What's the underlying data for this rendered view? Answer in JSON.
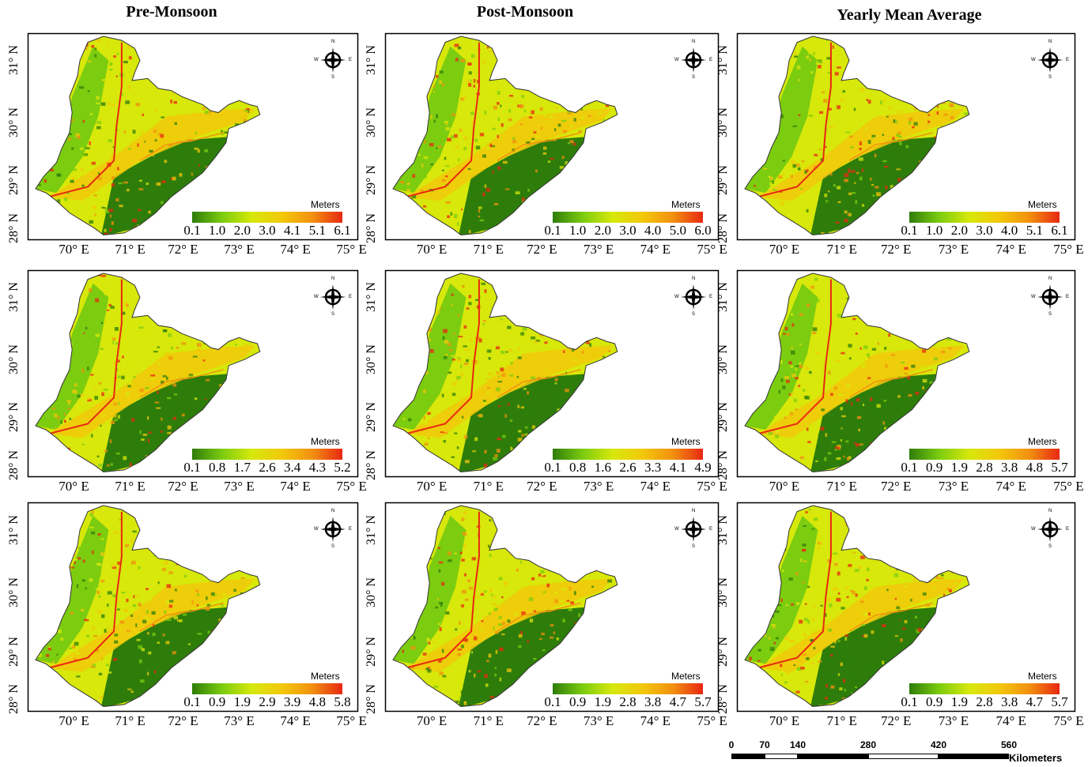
{
  "columns": [
    "Pre-Monsoon",
    "Post-Monsoon",
    "Yearly Mean Average"
  ],
  "latitude_labels": [
    "31° N",
    "30° N",
    "29° N",
    "28° N"
  ],
  "longitude_labels": [
    "70° E",
    "71° E",
    "72° E",
    "73° E",
    "74° E",
    "75° E"
  ],
  "legend_unit": "Meters",
  "legend_colors": [
    "#2e7d0a",
    "#7ccc10",
    "#d7e80a",
    "#f2c80a",
    "#f29010",
    "#e82812"
  ],
  "compass_letters": [
    "N",
    "W",
    "E",
    "S"
  ],
  "panels": [
    {
      "column": "Pre-Monsoon",
      "row": 1,
      "legend_ticks": [
        "0.1",
        "1.0",
        "2.0",
        "3.0",
        "4.1",
        "5.1",
        "6.1"
      ]
    },
    {
      "column": "Post-Monsoon",
      "row": 1,
      "legend_ticks": [
        "0.1",
        "1.0",
        "2.0",
        "3.0",
        "4.0",
        "5.0",
        "6.0"
      ]
    },
    {
      "column": "Yearly Mean Average",
      "row": 1,
      "legend_ticks": [
        "0.1",
        "1.0",
        "2.0",
        "3.0",
        "4.0",
        "5.1",
        "6.1"
      ]
    },
    {
      "column": "Pre-Monsoon",
      "row": 2,
      "legend_ticks": [
        "0.1",
        "0.8",
        "1.7",
        "2.6",
        "3.4",
        "4.3",
        "5.2"
      ]
    },
    {
      "column": "Post-Monsoon",
      "row": 2,
      "legend_ticks": [
        "0.1",
        "0.8",
        "1.6",
        "2.6",
        "3.3",
        "4.1",
        "4.9"
      ]
    },
    {
      "column": "Yearly Mean Average",
      "row": 2,
      "legend_ticks": [
        "0.1",
        "0.9",
        "1.9",
        "2.8",
        "3.8",
        "4.8",
        "5.7"
      ]
    },
    {
      "column": "Pre-Monsoon",
      "row": 3,
      "legend_ticks": [
        "0.1",
        "0.9",
        "1.9",
        "2.9",
        "3.9",
        "4.8",
        "5.8"
      ]
    },
    {
      "column": "Post-Monsoon",
      "row": 3,
      "legend_ticks": [
        "0.1",
        "0.9",
        "1.9",
        "2.8",
        "3.8",
        "4.7",
        "5.7"
      ]
    },
    {
      "column": "Yearly Mean Average",
      "row": 3,
      "legend_ticks": [
        "0.1",
        "0.9",
        "1.9",
        "2.8",
        "3.8",
        "4.7",
        "5.7"
      ]
    }
  ],
  "scale_bar": {
    "ticks": [
      "0",
      "70",
      "140",
      "280",
      "420",
      "560"
    ],
    "unit": "Kilometers"
  }
}
